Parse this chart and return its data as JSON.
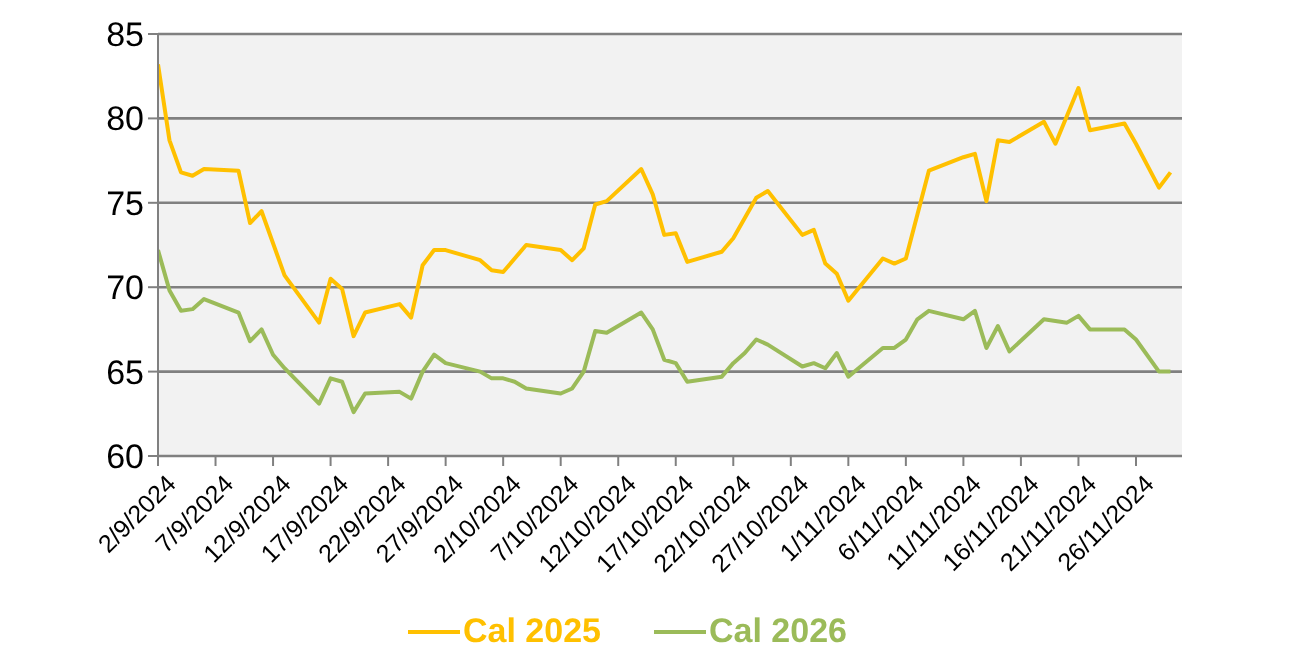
{
  "chart_data": {
    "type": "line",
    "xlim": [
      "2024-09-02",
      "2024-11-30"
    ],
    "xticks": [
      {
        "value": "2024-09-02",
        "label": "2/9/2024"
      },
      {
        "value": "2024-09-07",
        "label": "7/9/2024"
      },
      {
        "value": "2024-09-12",
        "label": "12/9/2024"
      },
      {
        "value": "2024-09-17",
        "label": "17/9/2024"
      },
      {
        "value": "2024-09-22",
        "label": "22/9/2024"
      },
      {
        "value": "2024-09-27",
        "label": "27/9/2024"
      },
      {
        "value": "2024-10-02",
        "label": "2/10/2024"
      },
      {
        "value": "2024-10-07",
        "label": "7/10/2024"
      },
      {
        "value": "2024-10-12",
        "label": "12/10/2024"
      },
      {
        "value": "2024-10-17",
        "label": "17/10/2024"
      },
      {
        "value": "2024-10-22",
        "label": "22/10/2024"
      },
      {
        "value": "2024-10-27",
        "label": "27/10/2024"
      },
      {
        "value": "2024-11-01",
        "label": "1/11/2024"
      },
      {
        "value": "2024-11-06",
        "label": "6/11/2024"
      },
      {
        "value": "2024-11-11",
        "label": "11/11/2024"
      },
      {
        "value": "2024-11-16",
        "label": "16/11/2024"
      },
      {
        "value": "2024-11-21",
        "label": "21/11/2024"
      },
      {
        "value": "2024-11-26",
        "label": "26/11/2024"
      }
    ],
    "ylim": [
      60,
      85
    ],
    "yticks": [
      60,
      65,
      70,
      75,
      80,
      85
    ],
    "grid": "y",
    "legend": "bottom",
    "marker": "none",
    "line_style": "solid",
    "series": [
      {
        "name": "Cal 2025",
        "color": "#ffc000",
        "x": [
          "2024-09-02",
          "2024-09-03",
          "2024-09-04",
          "2024-09-05",
          "2024-09-06",
          "2024-09-09",
          "2024-09-10",
          "2024-09-11",
          "2024-09-13",
          "2024-09-16",
          "2024-09-17",
          "2024-09-18",
          "2024-09-19",
          "2024-09-20",
          "2024-09-23",
          "2024-09-24",
          "2024-09-25",
          "2024-09-26",
          "2024-09-27",
          "2024-09-30",
          "2024-10-01",
          "2024-10-02",
          "2024-10-03",
          "2024-10-04",
          "2024-10-07",
          "2024-10-08",
          "2024-10-09",
          "2024-10-10",
          "2024-10-11",
          "2024-10-14",
          "2024-10-15",
          "2024-10-16",
          "2024-10-17",
          "2024-10-18",
          "2024-10-21",
          "2024-10-22",
          "2024-10-24",
          "2024-10-25",
          "2024-10-28",
          "2024-10-29",
          "2024-10-30",
          "2024-10-31",
          "2024-11-01",
          "2024-11-04",
          "2024-11-05",
          "2024-11-06",
          "2024-11-08",
          "2024-11-11",
          "2024-11-12",
          "2024-11-13",
          "2024-11-14",
          "2024-11-15",
          "2024-11-18",
          "2024-11-19",
          "2024-11-21",
          "2024-11-22",
          "2024-11-25",
          "2024-11-26",
          "2024-11-27",
          "2024-11-28",
          "2024-11-29"
        ],
        "values": [
          83.2,
          78.7,
          76.8,
          76.6,
          77.0,
          76.9,
          73.8,
          74.5,
          70.7,
          67.9,
          70.5,
          69.9,
          67.1,
          68.5,
          69.0,
          68.2,
          71.3,
          72.2,
          72.2,
          71.6,
          71.0,
          70.9,
          71.7,
          72.5,
          72.2,
          71.6,
          72.3,
          74.9,
          75.1,
          77.0,
          75.5,
          73.1,
          73.2,
          71.5,
          72.1,
          72.9,
          75.3,
          75.7,
          73.1,
          73.4,
          71.4,
          70.8,
          69.2,
          71.7,
          71.4,
          71.7,
          76.9,
          77.7,
          77.9,
          75.1,
          78.7,
          78.6,
          79.8,
          78.5,
          81.8,
          79.3,
          79.7,
          78.5,
          77.2,
          75.9,
          76.8
        ]
      },
      {
        "name": "Cal 2026",
        "color": "#9bbb59",
        "x": [
          "2024-09-02",
          "2024-09-03",
          "2024-09-04",
          "2024-09-05",
          "2024-09-06",
          "2024-09-09",
          "2024-09-10",
          "2024-09-11",
          "2024-09-12",
          "2024-09-13",
          "2024-09-16",
          "2024-09-17",
          "2024-09-18",
          "2024-09-19",
          "2024-09-20",
          "2024-09-23",
          "2024-09-24",
          "2024-09-25",
          "2024-09-26",
          "2024-09-27",
          "2024-09-30",
          "2024-10-01",
          "2024-10-02",
          "2024-10-03",
          "2024-10-04",
          "2024-10-07",
          "2024-10-08",
          "2024-10-09",
          "2024-10-10",
          "2024-10-11",
          "2024-10-14",
          "2024-10-15",
          "2024-10-16",
          "2024-10-17",
          "2024-10-18",
          "2024-10-21",
          "2024-10-22",
          "2024-10-23",
          "2024-10-24",
          "2024-10-25",
          "2024-10-28",
          "2024-10-29",
          "2024-10-30",
          "2024-10-31",
          "2024-11-01",
          "2024-11-04",
          "2024-11-05",
          "2024-11-06",
          "2024-11-07",
          "2024-11-08",
          "2024-11-11",
          "2024-11-12",
          "2024-11-13",
          "2024-11-14",
          "2024-11-15",
          "2024-11-18",
          "2024-11-20",
          "2024-11-21",
          "2024-11-22",
          "2024-11-25",
          "2024-11-26",
          "2024-11-28",
          "2024-11-29"
        ],
        "values": [
          72.2,
          69.8,
          68.6,
          68.7,
          69.3,
          68.5,
          66.8,
          67.5,
          66.0,
          65.2,
          63.1,
          64.6,
          64.4,
          62.6,
          63.7,
          63.8,
          63.4,
          65.0,
          66.0,
          65.5,
          65.0,
          64.6,
          64.6,
          64.4,
          64.0,
          63.7,
          64.0,
          65.0,
          67.4,
          67.3,
          68.5,
          67.5,
          65.7,
          65.5,
          64.4,
          64.7,
          65.5,
          66.1,
          66.9,
          66.6,
          65.3,
          65.5,
          65.2,
          66.1,
          64.7,
          66.4,
          66.4,
          66.9,
          68.1,
          68.6,
          68.1,
          68.6,
          66.4,
          67.7,
          66.2,
          68.1,
          67.9,
          68.3,
          67.5,
          67.5,
          66.9,
          65.0,
          65.0
        ]
      }
    ]
  }
}
